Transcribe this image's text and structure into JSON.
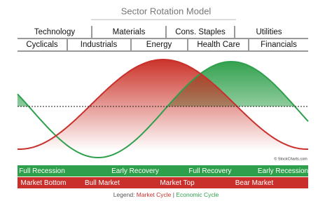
{
  "title": "Sector Rotation Model",
  "sectors": {
    "row1": [
      "Technology",
      "Materials",
      "Cons. Staples",
      "Utilities"
    ],
    "row2": [
      "Cyclicals",
      "Industrials",
      "Energy",
      "Health Care",
      "Financials"
    ]
  },
  "copyright": "© StockCharts.com",
  "economic_cycle": [
    "Full Recession",
    "Early Recovery",
    "Full Recovery",
    "Early Recession"
  ],
  "market_cycle": [
    "Market Bottom",
    "Bull Market",
    "Market Top",
    "Bear Market"
  ],
  "legend": {
    "label": "Legend:",
    "market": "Market Cycle",
    "separator": "|",
    "economic": "Economic Cycle"
  }
}
